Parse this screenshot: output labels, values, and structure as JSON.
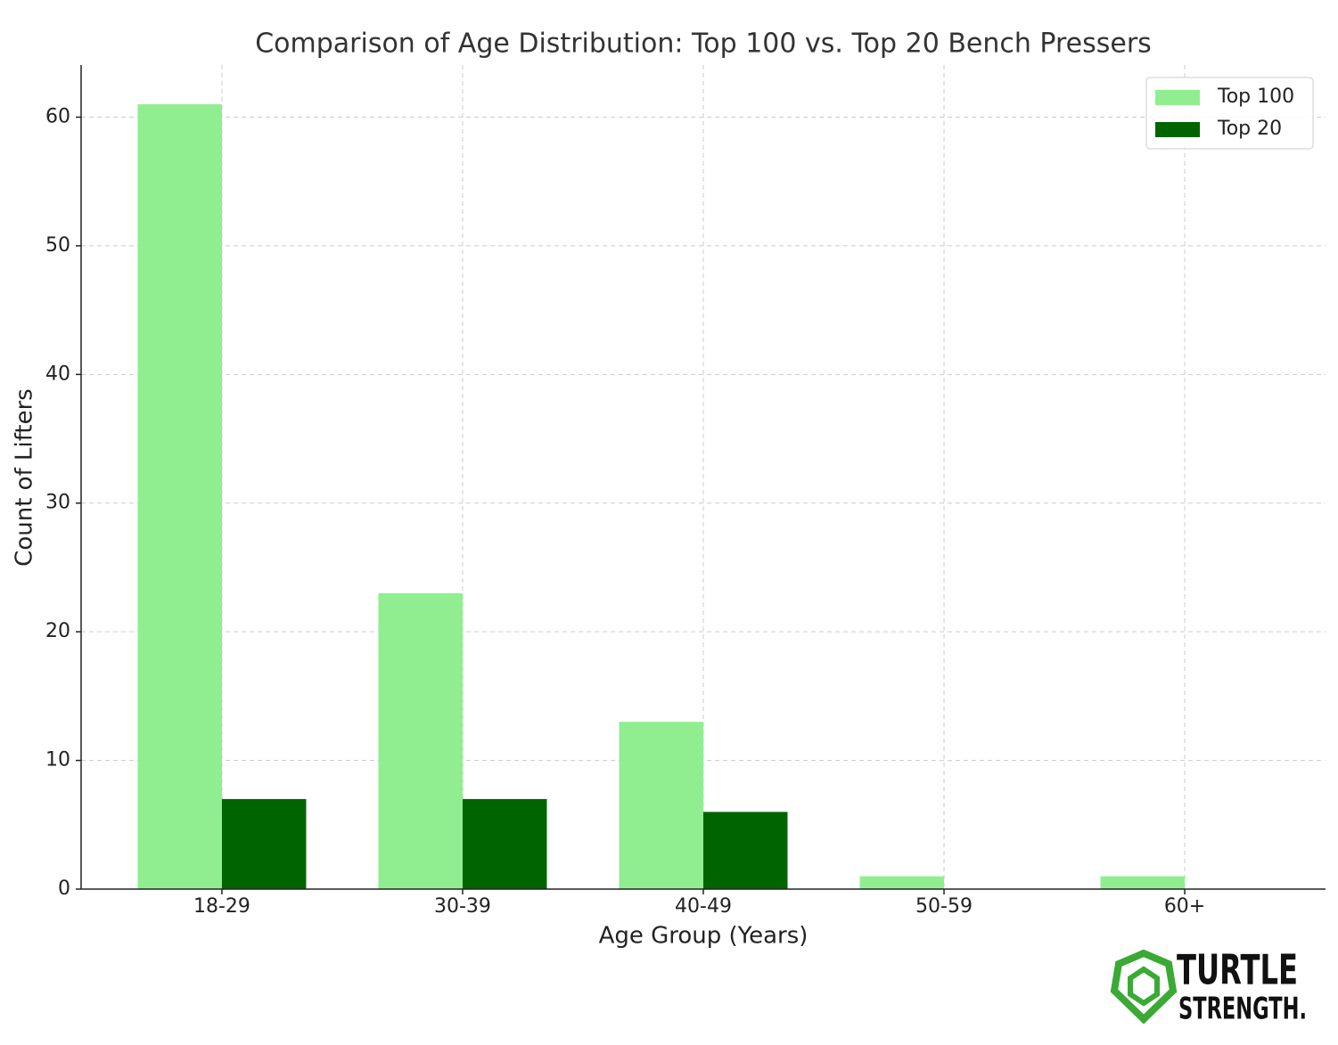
{
  "chart_data": {
    "type": "bar",
    "title": "Comparison of Age Distribution: Top 100 vs. Top 20 Bench Pressers",
    "x_label": "Age Group (Years)",
    "y_label": "Count of Lifters",
    "categories": [
      "18-29",
      "30-39",
      "40-49",
      "50-59",
      "60+"
    ],
    "series": [
      {
        "name": "Top 100",
        "color": "#90ee90",
        "values": [
          61,
          23,
          13,
          1,
          1
        ]
      },
      {
        "name": "Top 20",
        "color": "#006400",
        "values": [
          7,
          7,
          6,
          0,
          0
        ]
      }
    ],
    "ylim": [
      0,
      64.05
    ],
    "yticks": [
      0,
      10,
      20,
      30,
      40,
      50,
      60
    ],
    "grid": true,
    "legend": "upper right"
  },
  "logo": {
    "line1": "TURTLE",
    "line2": "STRENGTH."
  }
}
